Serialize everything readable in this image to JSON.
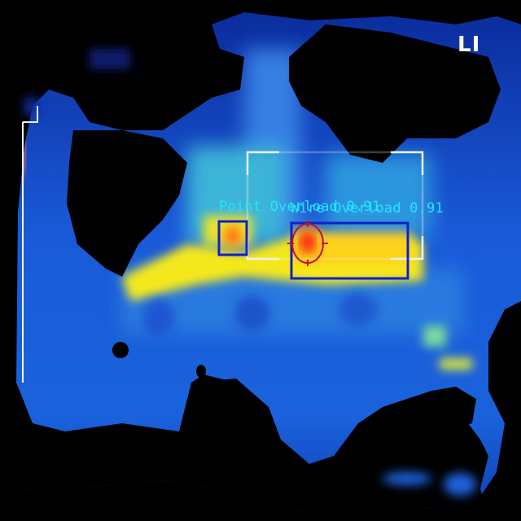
{
  "colors": {
    "label_text": "#22e6ff",
    "box_blue": "#1020c8",
    "roi_white": "#f2f2f2",
    "crosshair_red": "#c0102a",
    "hot_red": "#ff2a10",
    "hot_orange": "#ff9a1a",
    "warm_yellow": "#f4e81a",
    "mid_cyan": "#3fd0d0",
    "cool_blue": "#1a6be0",
    "cold_navy": "#0a2a9a",
    "mask_black": "#000000"
  },
  "overlay": {
    "corner_text": "LI",
    "detections": [
      {
        "label": "Point Overload",
        "score": "0.91"
      },
      {
        "label": "Wire Overload",
        "score": "0.91"
      }
    ]
  }
}
